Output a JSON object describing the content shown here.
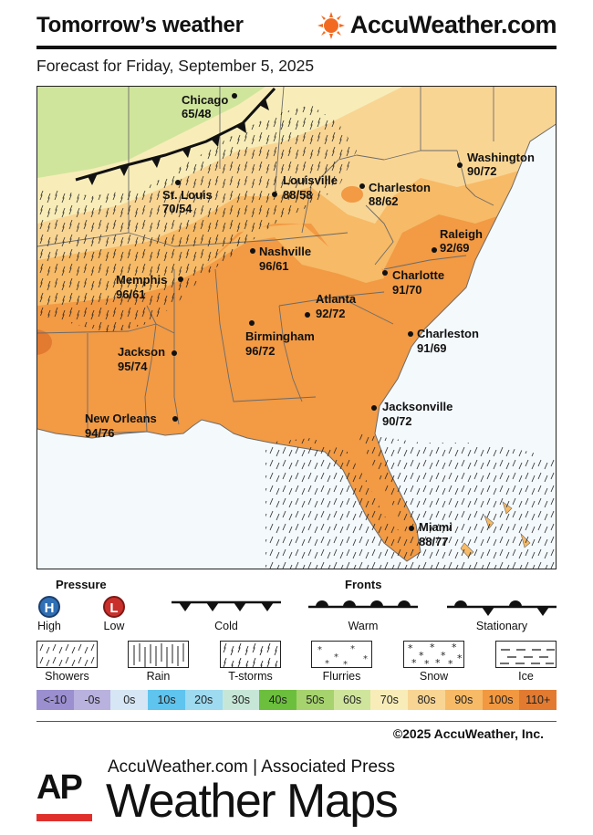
{
  "header": {
    "title": "Tomorrow’s weather",
    "brand": "AccuWeather.com",
    "subtitle": "Forecast for Friday, September 5, 2025"
  },
  "map": {
    "cities": [
      {
        "name": "Chicago",
        "temps": "65/48"
      },
      {
        "name": "St. Louis",
        "temps": "70/54"
      },
      {
        "name": "Louisville",
        "temps": "88/58"
      },
      {
        "name": "Charleston",
        "temps": "88/62"
      },
      {
        "name": "Washington",
        "temps": "90/72"
      },
      {
        "name": "Raleigh",
        "temps": "92/69"
      },
      {
        "name": "Nashville",
        "temps": "96/61"
      },
      {
        "name": "Memphis",
        "temps": "96/61"
      },
      {
        "name": "Charlotte",
        "temps": "91/70"
      },
      {
        "name": "Atlanta",
        "temps": "92/72"
      },
      {
        "name": "Birmingham",
        "temps": "96/72"
      },
      {
        "name": "Charleston",
        "temps": "91/69"
      },
      {
        "name": "Jackson",
        "temps": "95/74"
      },
      {
        "name": "New Orleans",
        "temps": "94/76"
      },
      {
        "name": "Jacksonville",
        "temps": "90/72"
      },
      {
        "name": "Miami",
        "temps": "88/77"
      }
    ]
  },
  "legend": {
    "pressure_heading": "Pressure",
    "high_symbol": "H",
    "high_label": "High",
    "low_symbol": "L",
    "low_label": "Low",
    "fronts_heading": "Fronts",
    "cold_label": "Cold",
    "warm_label": "Warm",
    "stationary_label": "Stationary",
    "precip": [
      "Showers",
      "Rain",
      "T-storms",
      "Flurries",
      "Snow",
      "Ice"
    ],
    "temp_scale": [
      {
        "label": "<-10",
        "color": "#9b8fd0"
      },
      {
        "label": "-0s",
        "color": "#b9b1de"
      },
      {
        "label": "0s",
        "color": "#d6e6f4"
      },
      {
        "label": "10s",
        "color": "#5fc4ee"
      },
      {
        "label": "20s",
        "color": "#9edaf0"
      },
      {
        "label": "30s",
        "color": "#c6e7d7"
      },
      {
        "label": "40s",
        "color": "#6cbf3d"
      },
      {
        "label": "50s",
        "color": "#a6d36e"
      },
      {
        "label": "60s",
        "color": "#d0e59c"
      },
      {
        "label": "70s",
        "color": "#f8edb8"
      },
      {
        "label": "80s",
        "color": "#f9d594"
      },
      {
        "label": "90s",
        "color": "#f7ba66"
      },
      {
        "label": "100s",
        "color": "#f19840"
      },
      {
        "label": "110+",
        "color": "#e27a30"
      }
    ]
  },
  "footer": {
    "copyright": "©2025 AccuWeather, Inc.",
    "ap": "AP",
    "line1": "AccuWeather.com | Associated Press",
    "line2": "Weather Maps"
  }
}
